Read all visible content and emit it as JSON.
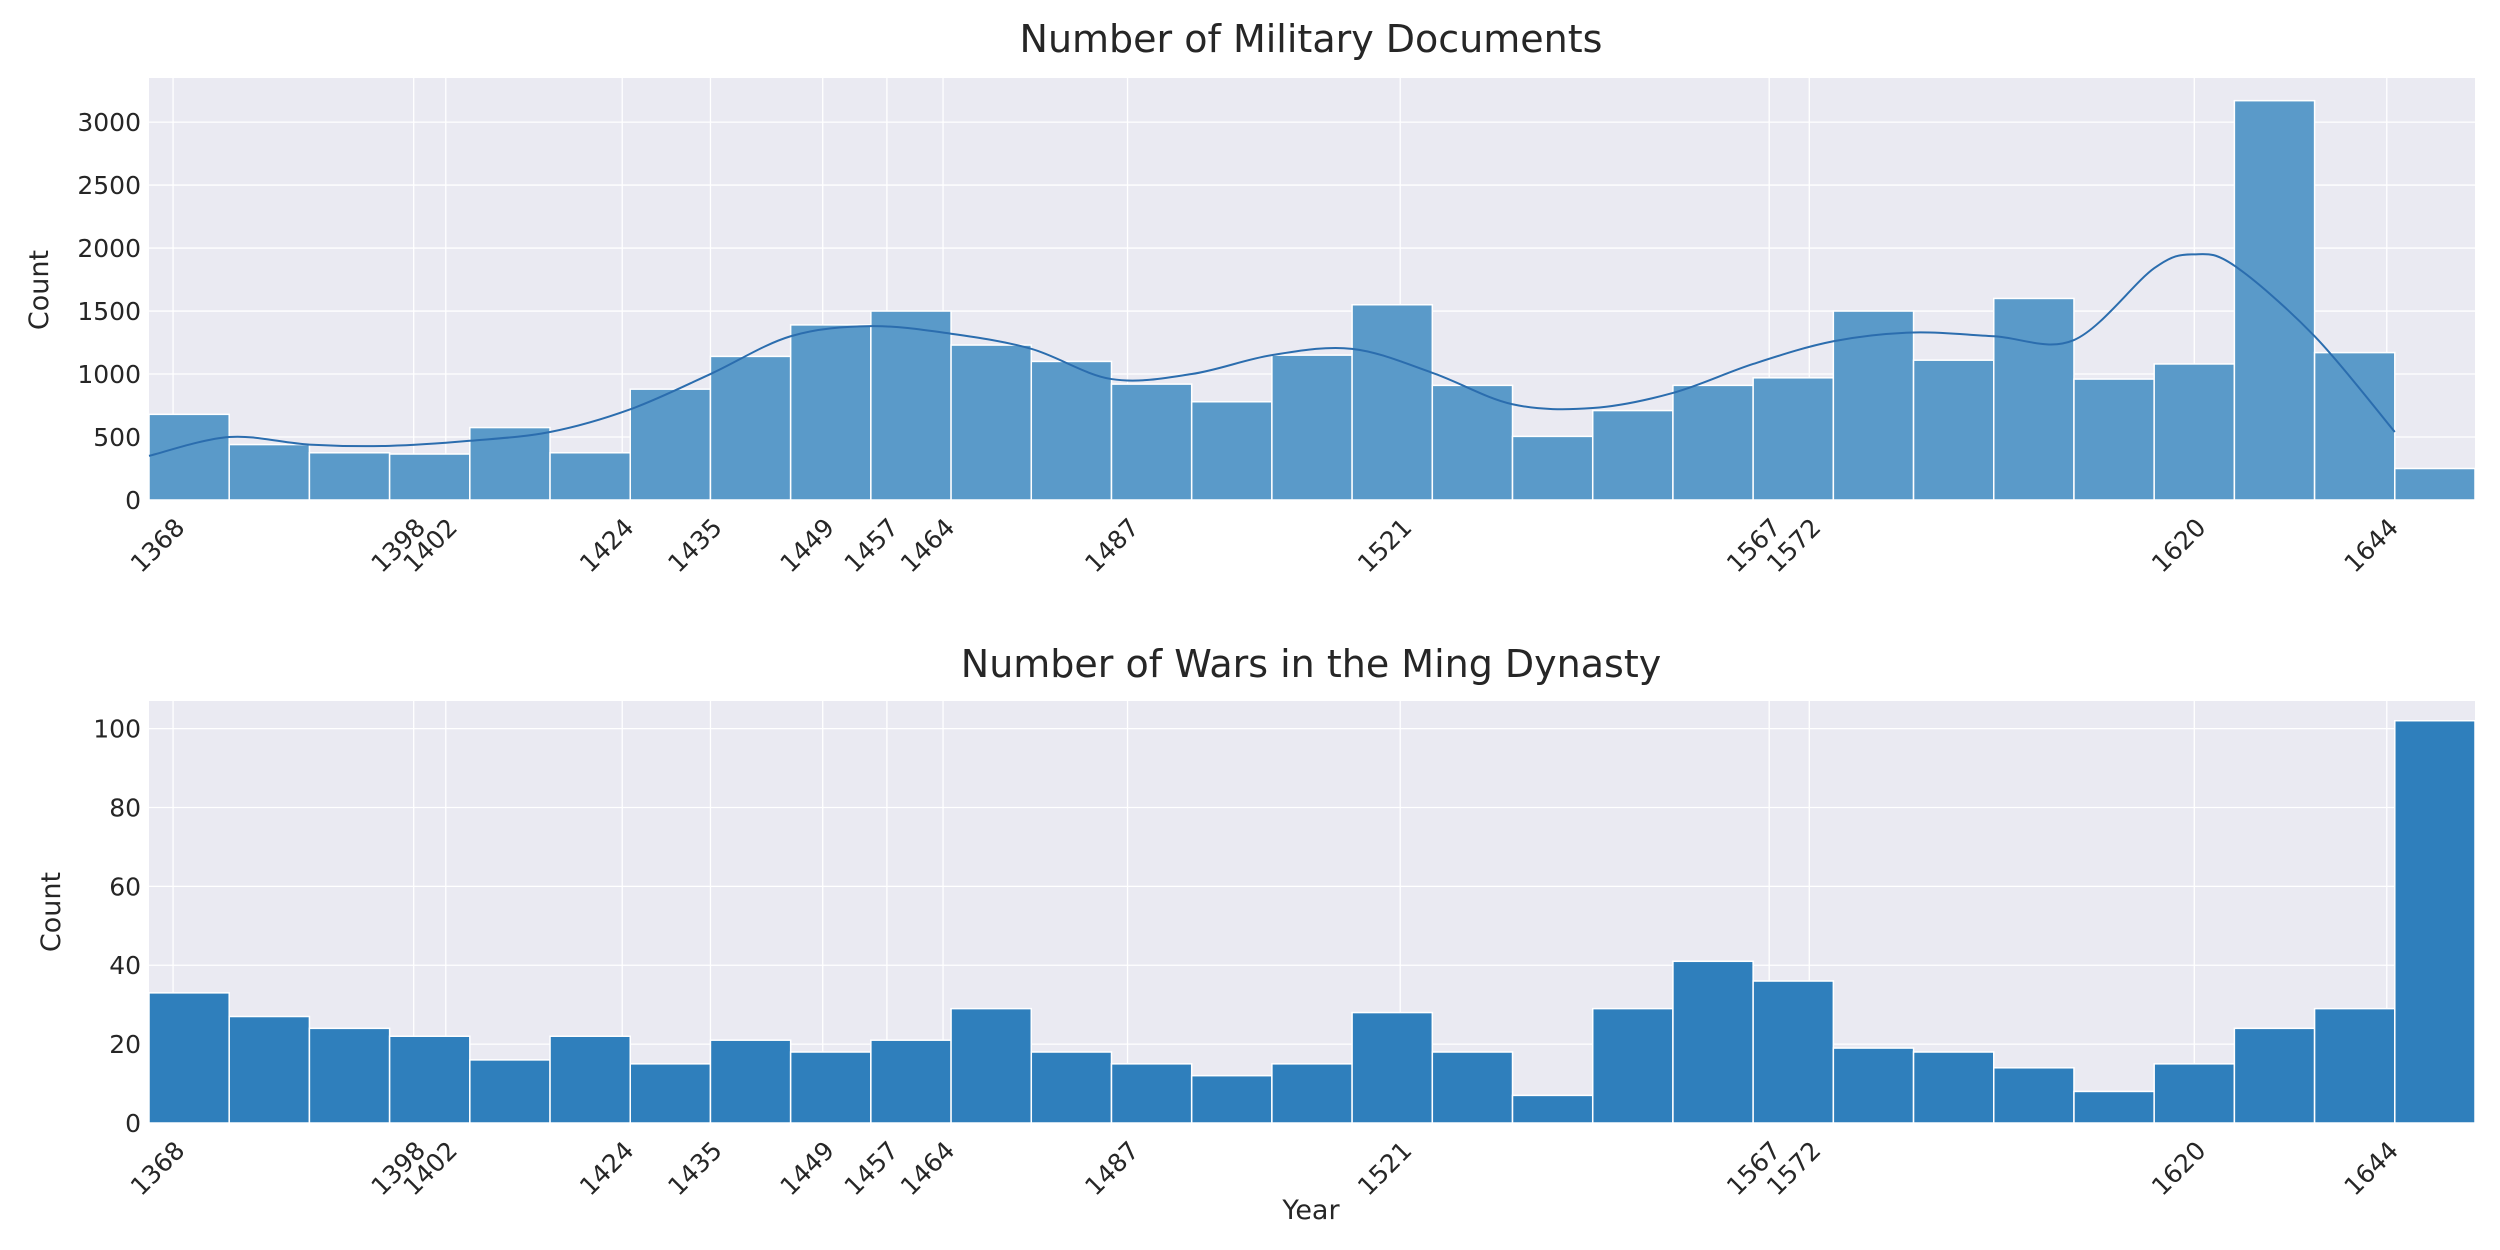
{
  "chart_data": [
    {
      "type": "histogram",
      "title": "Number of Military Documents",
      "xlabel": "",
      "ylabel": "Count",
      "bin_start": 1365,
      "bin_width": 10,
      "xlim": [
        1365,
        1655
      ],
      "ylim": [
        0,
        3350
      ],
      "yticks": [
        0,
        500,
        1000,
        1500,
        2000,
        2500,
        3000
      ],
      "xticks": [
        1368,
        1398,
        1402,
        1424,
        1435,
        1449,
        1457,
        1464,
        1487,
        1521,
        1567,
        1572,
        1620,
        1644
      ],
      "values": [
        680,
        440,
        375,
        365,
        575,
        375,
        880,
        1140,
        1390,
        1500,
        1230,
        1100,
        920,
        780,
        1150,
        1550,
        910,
        505,
        710,
        910,
        970,
        1500,
        1110,
        1600,
        960,
        1080,
        3170,
        1170,
        250
      ],
      "kde": {
        "x": [
          1365,
          1375,
          1385,
          1395,
          1405,
          1415,
          1425,
          1435,
          1445,
          1455,
          1465,
          1475,
          1485,
          1495,
          1505,
          1515,
          1525,
          1535,
          1545,
          1555,
          1565,
          1575,
          1585,
          1595,
          1605,
          1615,
          1620,
          1625,
          1635,
          1645
        ],
        "y": [
          350,
          500,
          440,
          430,
          470,
          540,
          720,
          1000,
          1300,
          1380,
          1320,
          1200,
          960,
          1000,
          1150,
          1200,
          1010,
          760,
          730,
          850,
          1080,
          1260,
          1330,
          1300,
          1270,
          1840,
          1950,
          1860,
          1300,
          540
        ]
      },
      "color": "#5A9AC9",
      "line_color": "#2B6DAE"
    },
    {
      "type": "histogram",
      "title": "Number of Wars in the Ming Dynasty",
      "xlabel": "Year",
      "ylabel": "Count",
      "bin_start": 1365,
      "bin_width": 10,
      "xlim": [
        1365,
        1655
      ],
      "ylim": [
        0,
        107
      ],
      "yticks": [
        0,
        20,
        40,
        60,
        80,
        100
      ],
      "xticks": [
        1368,
        1398,
        1402,
        1424,
        1435,
        1449,
        1457,
        1464,
        1487,
        1521,
        1567,
        1572,
        1620,
        1644
      ],
      "values": [
        33,
        27,
        24,
        22,
        16,
        22,
        15,
        21,
        18,
        21,
        29,
        18,
        15,
        12,
        15,
        28,
        18,
        7,
        29,
        41,
        36,
        19,
        18,
        14,
        8,
        15,
        24,
        29,
        102
      ],
      "color": "#2F7FBC"
    }
  ]
}
